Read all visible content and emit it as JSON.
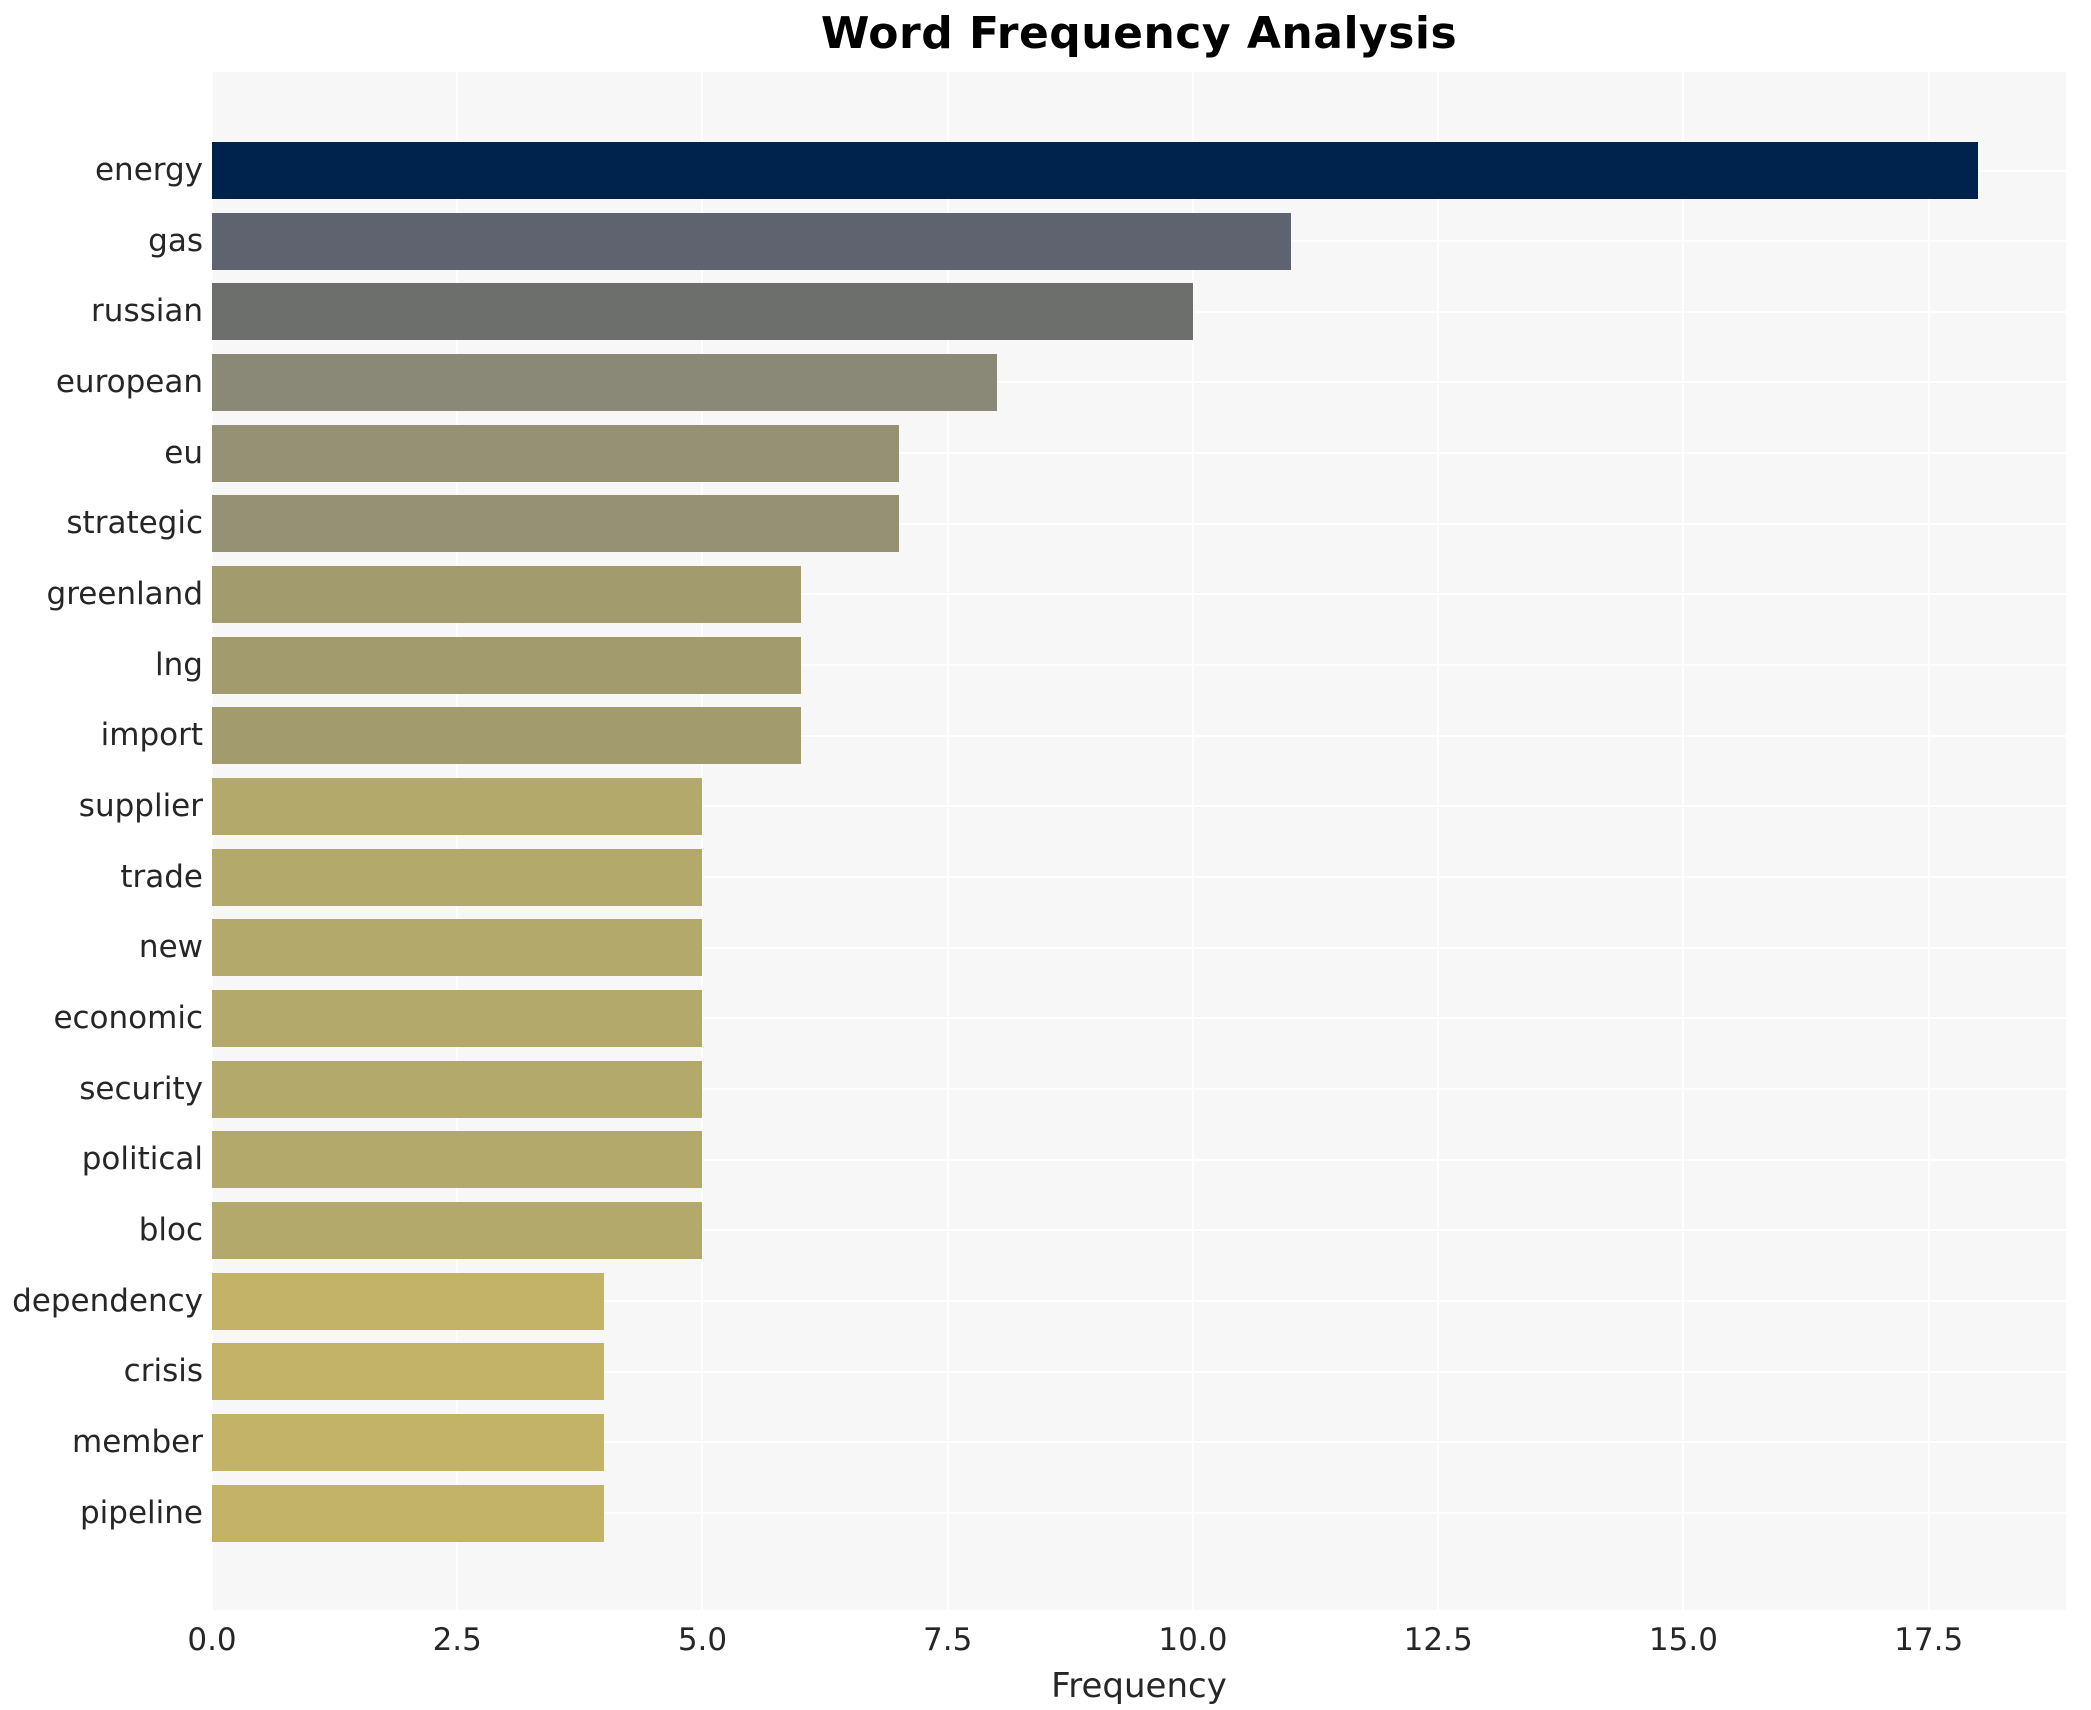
{
  "title": "Word Frequency Analysis",
  "x_axis_label": "Frequency",
  "chart_data": {
    "type": "bar",
    "orientation": "horizontal",
    "title": "Word Frequency Analysis",
    "xlabel": "Frequency",
    "ylabel": "",
    "categories": [
      "energy",
      "gas",
      "russian",
      "european",
      "eu",
      "strategic",
      "greenland",
      "lng",
      "import",
      "supplier",
      "trade",
      "new",
      "economic",
      "security",
      "political",
      "bloc",
      "dependency",
      "crisis",
      "member",
      "pipeline"
    ],
    "values": [
      18,
      11,
      10,
      8,
      7,
      7,
      6,
      6,
      6,
      5,
      5,
      5,
      5,
      5,
      5,
      5,
      4,
      4,
      4,
      4
    ],
    "bar_colors": [
      "#00234e",
      "#5f6370",
      "#6d6f6d",
      "#8a8876",
      "#949175",
      "#949175",
      "#a29b6e",
      "#a29b6e",
      "#a29b6e",
      "#b2a96a",
      "#b2a96a",
      "#b2a96a",
      "#b2a96a",
      "#b2a96a",
      "#b2a96a",
      "#b2a96a",
      "#c2b366",
      "#c2b366",
      "#c2b366",
      "#c2b366"
    ],
    "xlim": [
      0,
      18.9
    ],
    "xticks": [
      0.0,
      2.5,
      5.0,
      7.5,
      10.0,
      12.5,
      15.0,
      17.5
    ],
    "xtick_labels": [
      "0.0",
      "2.5",
      "5.0",
      "7.5",
      "10.0",
      "12.5",
      "15.0",
      "17.5"
    ],
    "grid": true,
    "grid_color": "#ffffff",
    "plot_background": "#f7f7f7",
    "figure_background": "#ffffff",
    "legend": false
  }
}
